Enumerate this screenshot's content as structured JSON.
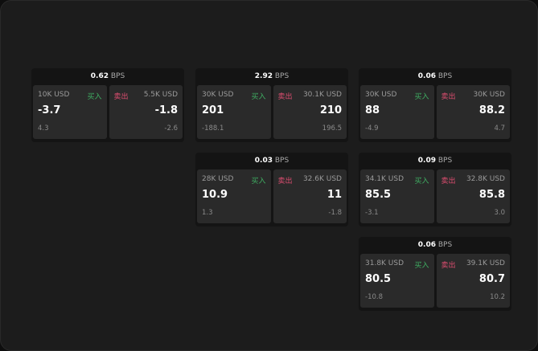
{
  "labels": {
    "buy": "买入",
    "sell": "卖出",
    "unit": "BPS"
  },
  "colors": {
    "buy": "#3fae62",
    "sell": "#dd4d70"
  },
  "cards": [
    {
      "spread": "0.62",
      "buy": {
        "amount": "10K USD",
        "price": "-3.7",
        "change": "4.3"
      },
      "sell": {
        "amount": "5.5K USD",
        "price": "-1.8",
        "change": "-2.6"
      }
    },
    {
      "spread": "2.92",
      "buy": {
        "amount": "30K USD",
        "price": "201",
        "change": "-188.1"
      },
      "sell": {
        "amount": "30.1K USD",
        "price": "210",
        "change": "196.5"
      }
    },
    {
      "spread": "0.06",
      "buy": {
        "amount": "30K USD",
        "price": "88",
        "change": "-4.9"
      },
      "sell": {
        "amount": "30K USD",
        "price": "88.2",
        "change": "4.7"
      }
    },
    {
      "spread": "0.03",
      "buy": {
        "amount": "28K USD",
        "price": "10.9",
        "change": "1.3"
      },
      "sell": {
        "amount": "32.6K USD",
        "price": "11",
        "change": "-1.8"
      }
    },
    {
      "spread": "0.09",
      "buy": {
        "amount": "34.1K USD",
        "price": "85.5",
        "change": "-3.1"
      },
      "sell": {
        "amount": "32.8K USD",
        "price": "85.8",
        "change": "3.0"
      }
    },
    {
      "spread": "0.06",
      "buy": {
        "amount": "31.8K USD",
        "price": "80.5",
        "change": "-10.8"
      },
      "sell": {
        "amount": "39.1K USD",
        "price": "80.7",
        "change": "10.2"
      }
    }
  ]
}
